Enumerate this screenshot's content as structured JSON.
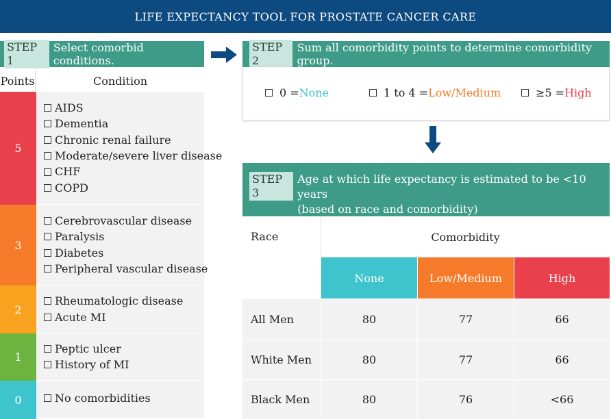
{
  "title": "LIFE EXPECTANCY TOOL FOR PROSTATE CANCER CARE",
  "step1": {
    "tag": "STEP 1",
    "text": "Select comorbid conditions.",
    "col_points": "Points",
    "col_condition": "Condition",
    "groups": [
      {
        "points": "5",
        "color": "#e8414b",
        "conditions": [
          "AIDS",
          "Dementia",
          "Chronic renal failure",
          "Moderate/severe liver disease",
          "CHF",
          "COPD"
        ]
      },
      {
        "points": "3",
        "color": "#f57b2a",
        "conditions": [
          "Cerebrovascular disease",
          "Paralysis",
          "Diabetes",
          "Peripheral vascular disease"
        ]
      },
      {
        "points": "2",
        "color": "#f9a21f",
        "conditions": [
          "Rheumatologic disease",
          "Acute MI"
        ]
      },
      {
        "points": "1",
        "color": "#6cb33f",
        "conditions": [
          "Peptic ulcer",
          "History of MI"
        ]
      },
      {
        "points": "0",
        "color": "#3ec4cc",
        "conditions": [
          "No comorbidities"
        ]
      }
    ]
  },
  "step2": {
    "tag": "STEP 2",
    "text": "Sum all comorbidity points to determine comorbidity group.",
    "options": [
      {
        "prefix": "0 = ",
        "label": "None"
      },
      {
        "prefix": "1 to 4 = ",
        "label": "Low/Medium"
      },
      {
        "prefix": "≥5 = ",
        "label": "High"
      }
    ]
  },
  "step3": {
    "tag": "STEP 3",
    "text_line1": "Age at which life expectancy is estimated to be <10 years",
    "text_line2": "(based on race and comorbidity)",
    "col_race": "Race",
    "col_comorbidity": "Comorbidity",
    "groups": [
      "None",
      "Low/Medium",
      "High"
    ],
    "group_colors": [
      "#3ec4cc",
      "#f57b2a",
      "#e8414b"
    ],
    "rows": [
      {
        "race": "All Men",
        "values": [
          "80",
          "77",
          "66"
        ]
      },
      {
        "race": "White Men",
        "values": [
          "80",
          "77",
          "66"
        ]
      },
      {
        "race": "Black Men",
        "values": [
          "80",
          "76",
          "<66"
        ]
      }
    ]
  },
  "colors": {
    "title_bar": "#0d4a80",
    "step_header": "#3d9b87",
    "step_tag_bg": "#c9e6de",
    "table_fill": "#f2f2f2"
  },
  "icons": [
    "arrow-right-icon",
    "arrow-down-icon",
    "checkbox-icon"
  ]
}
